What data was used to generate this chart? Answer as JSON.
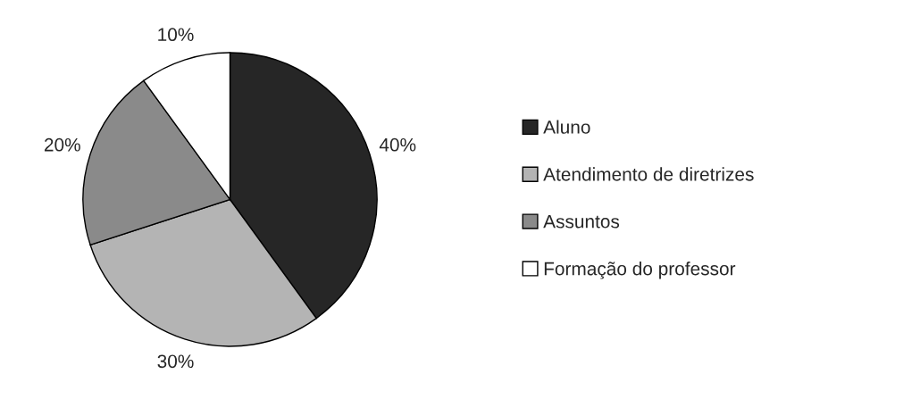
{
  "chart_data": {
    "type": "pie",
    "categories": [
      "Aluno",
      "Atendimento de diretrizes",
      "Assuntos",
      "Formação do professor"
    ],
    "values": [
      40,
      30,
      20,
      10
    ],
    "colors": [
      "#262626",
      "#b4b4b4",
      "#8a8a8a",
      "#ffffff"
    ],
    "value_labels": [
      "40%",
      "30%",
      "20%",
      "10%"
    ],
    "legend": "right"
  }
}
